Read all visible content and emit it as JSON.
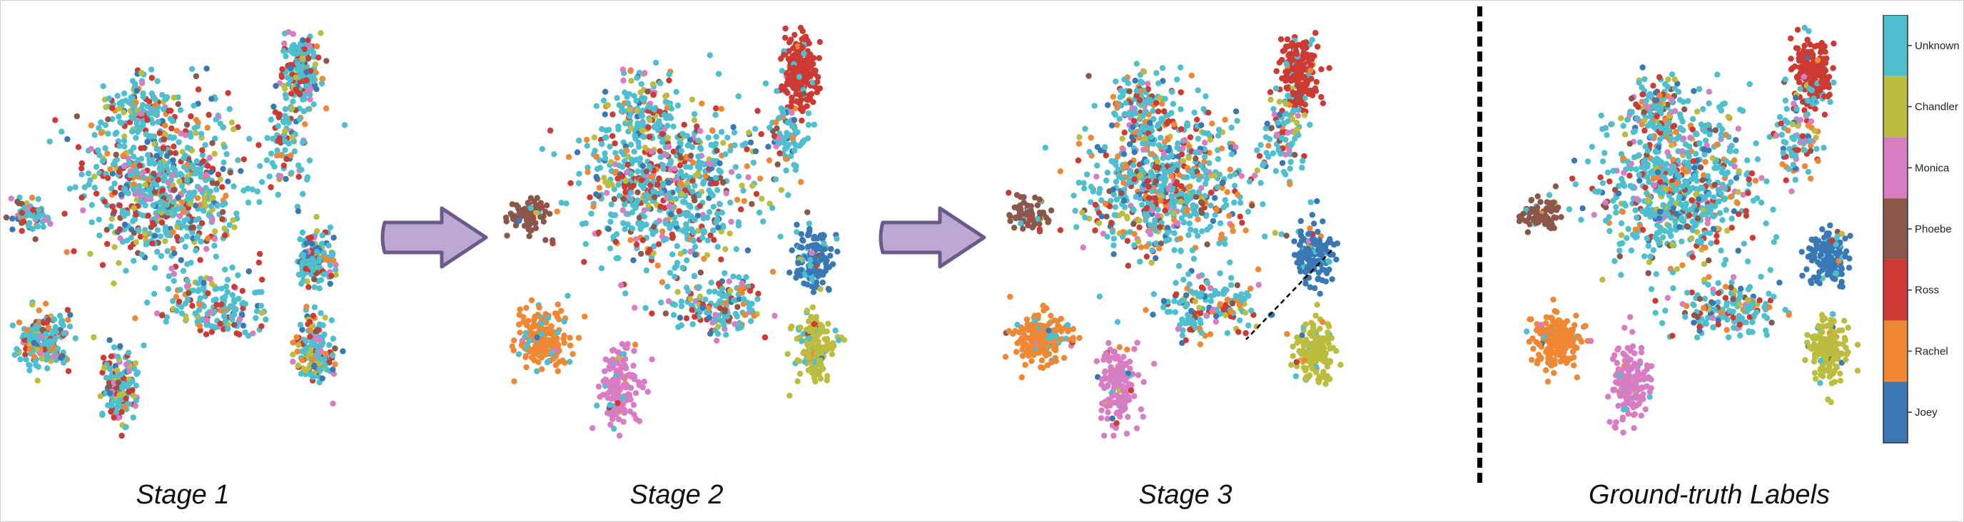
{
  "captions": {
    "stage1": "Stage 1",
    "stage2": "Stage 2",
    "stage3": "Stage 3",
    "ground_truth": "Ground-truth Labels"
  },
  "colors": {
    "Unknown": "#4dbfcf",
    "Chandler": "#bcbd3e",
    "Monica": "#d87cc4",
    "Phoebe": "#8b574b",
    "Ross": "#cc3a33",
    "Rachel": "#ef8733",
    "Joey": "#3a78b5",
    "arrow_fill": "#bca8d0",
    "arrow_stroke": "#6b5a8e"
  },
  "chart_data": [
    {
      "type": "scatter",
      "panel": "Stage 1",
      "description_of_marks": "2-D embedding points colored by speaker label; labels mixed, no clear clusters",
      "label_mix": {
        "Unknown": 0.55,
        "Ross": 0.13,
        "Chandler": 0.08,
        "Monica": 0.07,
        "Phoebe": 0.05,
        "Rachel": 0.06,
        "Joey": 0.06
      }
    },
    {
      "type": "scatter",
      "panel": "Stage 2",
      "label_mix": {
        "Unknown": 0.55,
        "Ross": 0.12,
        "Chandler": 0.07,
        "Monica": 0.07,
        "Phoebe": 0.05,
        "Rachel": 0.07,
        "Joey": 0.07
      }
    },
    {
      "type": "scatter",
      "panel": "Stage 3",
      "label_mix": {
        "Unknown": 0.48,
        "Ross": 0.12,
        "Chandler": 0.07,
        "Monica": 0.07,
        "Phoebe": 0.06,
        "Rachel": 0.12,
        "Joey": 0.08
      }
    },
    {
      "type": "scatter",
      "panel": "Ground-truth Labels",
      "label_mix": {
        "Unknown": 0.55,
        "Ross": 0.12,
        "Chandler": 0.07,
        "Monica": 0.07,
        "Phoebe": 0.05,
        "Rachel": 0.07,
        "Joey": 0.07
      }
    },
    {
      "type": "heatmap",
      "panel": "colorbar",
      "categories": [
        "Unknown",
        "Chandler",
        "Monica",
        "Phoebe",
        "Ross",
        "Rachel",
        "Joey"
      ]
    }
  ]
}
